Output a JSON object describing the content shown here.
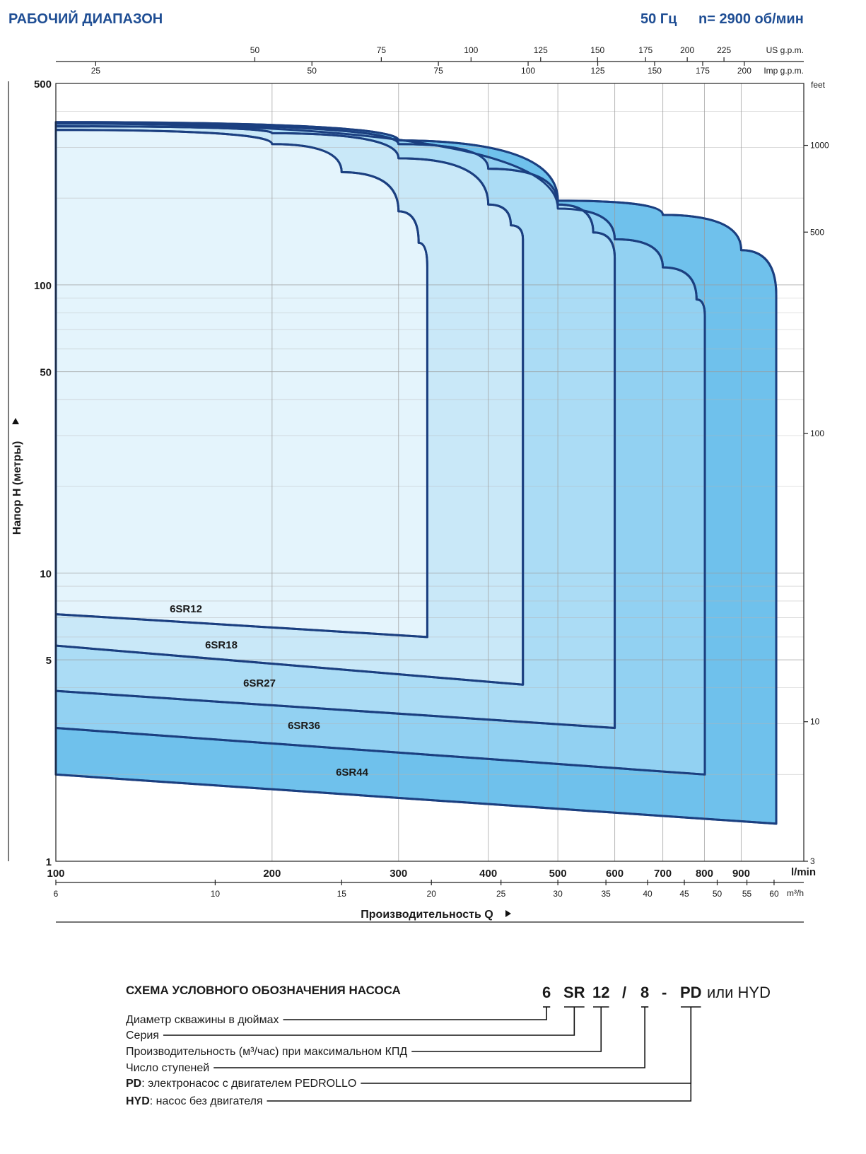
{
  "chart_data": {
    "type": "area",
    "title": "РАБОЧИЙ ДИАПАЗОН",
    "frequency": "50 Гц",
    "speed": "n= 2900 об/мин",
    "y_label": "Напор H (метры)",
    "x_label": "Производительность Q",
    "x_unit": "l/min",
    "xscale": "log",
    "xlim": [
      100,
      1100
    ],
    "xticks": [
      100,
      200,
      300,
      400,
      500,
      600,
      700,
      800,
      900
    ],
    "yscale": "log",
    "ylim": [
      1,
      500
    ],
    "yticks": [
      1,
      5,
      10,
      50,
      100,
      500
    ],
    "y_minor_grid": [
      2,
      3,
      4,
      6,
      7,
      8,
      9,
      20,
      30,
      40,
      60,
      70,
      80,
      90,
      200,
      300,
      400
    ],
    "grid": true,
    "x_m3h": {
      "unit": "m³/h",
      "lim": [
        6,
        66
      ],
      "ticks": [
        6,
        10,
        15,
        20,
        25,
        30,
        35,
        40,
        45,
        50,
        55,
        60
      ]
    },
    "x_us_gpm": {
      "unit": "US g.p.m.",
      "lim": [
        26.42,
        290.6
      ],
      "ticks": [
        50,
        75,
        100,
        125,
        150,
        175,
        200,
        225
      ]
    },
    "x_imp_gpm": {
      "unit": "Imp g.p.m.",
      "lim": [
        22,
        242
      ],
      "ticks": [
        25,
        50,
        75,
        100,
        125,
        150,
        175,
        200
      ]
    },
    "y_feet": {
      "unit": "feet",
      "lim": [
        3.28,
        1640
      ],
      "ticks": [
        {
          "value": 3.28,
          "label": "3"
        },
        10,
        100,
        500,
        1000
      ]
    },
    "stroke": "#1b3f80",
    "series": [
      {
        "name": "6SR44",
        "color": "#6fc1ec",
        "upper": {
          "q": [
            100,
            300,
            500,
            700,
            900,
            1007
          ],
          "h": [
            367,
            317,
            196,
            175,
            132,
            92
          ]
        },
        "lower": {
          "q": [
            100,
            1007
          ],
          "h": [
            2.0,
            1.35
          ]
        }
      },
      {
        "name": "6SR36",
        "color": "#92d1f2",
        "upper": {
          "q": [
            100,
            500,
            600,
            700,
            780,
            801
          ],
          "h": [
            363,
            184,
            144,
            115,
            89,
            78
          ]
        },
        "lower": {
          "q": [
            100,
            801
          ],
          "h": [
            2.9,
            2.0
          ]
        }
      },
      {
        "name": "6SR27",
        "color": "#abdcf5",
        "upper": {
          "q": [
            100,
            300,
            400,
            500,
            560,
            600
          ],
          "h": [
            363,
            308,
            253,
            190,
            152,
            124
          ]
        },
        "lower": {
          "q": [
            100,
            600
          ],
          "h": [
            3.9,
            2.9
          ]
        }
      },
      {
        "name": "6SR18",
        "color": "#c9e8f8",
        "upper": {
          "q": [
            100,
            200,
            300,
            400,
            430,
            447
          ],
          "h": [
            355,
            336,
            275,
            190,
            161,
            144
          ]
        },
        "lower": {
          "q": [
            100,
            447
          ],
          "h": [
            5.6,
            4.1
          ]
        }
      },
      {
        "name": "6SR12",
        "color": "#e4f4fc",
        "upper": {
          "q": [
            100,
            200,
            250,
            300,
            320,
            329
          ],
          "h": [
            345,
            308,
            246,
            180,
            140,
            115
          ]
        },
        "lower": {
          "q": [
            100,
            329
          ],
          "h": [
            7.2,
            6.0
          ]
        }
      }
    ]
  },
  "scheme": {
    "title": "СХЕМА УСЛОВНОГО ОБОЗНАЧЕНИЯ НАСОСА",
    "code": [
      "6",
      "SR",
      "12",
      "/",
      "8",
      "-",
      "PD",
      "или HYD"
    ],
    "items": [
      {
        "text": "Диаметр скважины в дюймах"
      },
      {
        "text": "Серия"
      },
      {
        "text": "Производительность (м³/час) при максимальном КПД"
      },
      {
        "text": "Число ступеней"
      },
      {
        "bold": "PD",
        "text": ": электронасос с двигателем PEDROLLO"
      },
      {
        "bold": "HYD",
        "text": ": насос без двигателя"
      }
    ]
  }
}
